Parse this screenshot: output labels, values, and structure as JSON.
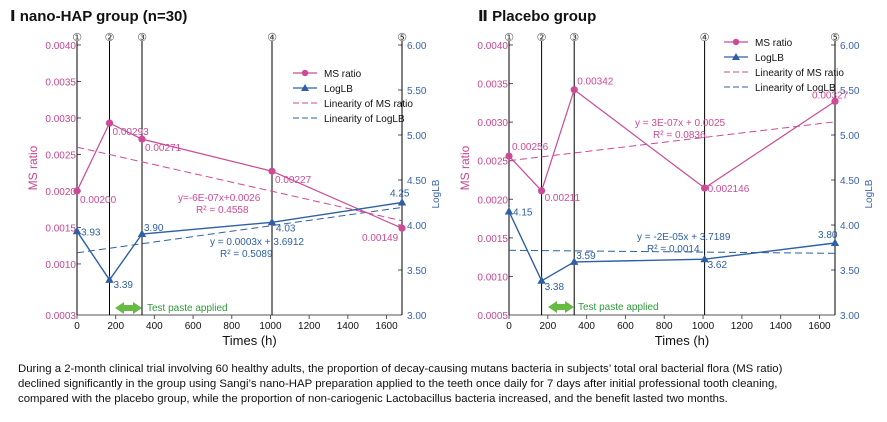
{
  "colors": {
    "ms": "#cc4a96",
    "lb": "#2f5fa4",
    "axis_left": "#c8468f",
    "axis_right": "#3a63ad",
    "arrow": "#66bb44",
    "arrow_text": "#2e9a3a",
    "text": "#111111"
  },
  "chart_data": [
    {
      "type": "line",
      "title_numeral": "Ⅰ",
      "title": "nano-HAP group (n=30)",
      "xlabel": "Times (h)",
      "ylabel": "MS ratio",
      "y2label": "LogLB",
      "xlim": [
        0,
        1680
      ],
      "ylim": [
        0.0003,
        0.004
      ],
      "y2lim": [
        3.0,
        6.0
      ],
      "x_ticks": [
        "0",
        "200",
        "400",
        "600",
        "800",
        "1000",
        "1200",
        "1400",
        "1600"
      ],
      "x_tick_values": [
        0,
        200,
        400,
        600,
        800,
        1000,
        1200,
        1400,
        1600
      ],
      "y_ticks": [
        "0.0003",
        "0.0010",
        "0.0015",
        "0.0020",
        "0.0025",
        "0.0030",
        "0.0035",
        "0.0040"
      ],
      "y_tick_values": [
        0.0003,
        0.001,
        0.0015,
        0.002,
        0.0025,
        0.003,
        0.0035,
        0.004
      ],
      "y2_ticks": [
        "3.00",
        "3.50",
        "4.00",
        "4.50",
        "5.00",
        "5.50",
        "6.00"
      ],
      "y2_tick_values": [
        3.0,
        3.5,
        4.0,
        4.5,
        5.0,
        5.5,
        6.0
      ],
      "markers": [
        {
          "label": "①",
          "x": 0
        },
        {
          "label": "②",
          "x": 168
        },
        {
          "label": "③",
          "x": 336
        },
        {
          "label": "④",
          "x": 1008
        },
        {
          "label": "⑤",
          "x": 1680
        }
      ],
      "series": [
        {
          "name": "MS ratio",
          "axis": "left",
          "x": [
            0,
            168,
            336,
            1008,
            1680
          ],
          "values": [
            0.002,
            0.00293,
            0.00271,
            0.00227,
            0.00149
          ],
          "labels": [
            "0.00200",
            "0.00293",
            "0.00271",
            "0.00227",
            "0.00149"
          ]
        },
        {
          "name": "LogLB",
          "axis": "right",
          "x": [
            0,
            168,
            336,
            1008,
            1680
          ],
          "values": [
            3.93,
            3.39,
            3.9,
            4.03,
            4.25
          ],
          "labels": [
            "3.93",
            "3.39",
            "3.90",
            "4.03",
            "4.25"
          ]
        }
      ],
      "trendlines": [
        {
          "name": "Linearity of MS ratio",
          "axis": "left",
          "slope": -6e-07,
          "intercept": 0.0026,
          "equation": "y=-6E-07x+0.0026",
          "r2": "R² = 0.4558"
        },
        {
          "name": "Linearity of LogLB",
          "axis": "right",
          "slope": 0.0003,
          "intercept": 3.6912,
          "equation": "y = 0.0003x + 3.6912",
          "r2": "R² = 0.5089"
        }
      ],
      "legend": [
        "MS ratio",
        "LogLB",
        "Linearity of MS ratio",
        "Linearity of LogLB"
      ],
      "annotation": "Test paste applied"
    },
    {
      "type": "line",
      "title_numeral": "Ⅱ",
      "title": "Placebo group",
      "xlabel": "Times (h)",
      "ylabel": "MS ratio",
      "y2label": "LogLB",
      "xlim": [
        0,
        1680
      ],
      "ylim": [
        0.0005,
        0.004
      ],
      "y2lim": [
        3.0,
        6.0
      ],
      "x_ticks": [
        "0",
        "200",
        "400",
        "600",
        "800",
        "1000",
        "1200",
        "1400",
        "1600"
      ],
      "x_tick_values": [
        0,
        200,
        400,
        600,
        800,
        1000,
        1200,
        1400,
        1600
      ],
      "y_ticks": [
        "0.0005",
        "0.0010",
        "0.0015",
        "0.0020",
        "0.0025",
        "0.0030",
        "0.0035",
        "0.0040"
      ],
      "y_tick_values": [
        0.0005,
        0.001,
        0.0015,
        0.002,
        0.0025,
        0.003,
        0.0035,
        0.004
      ],
      "y2_ticks": [
        "3.00",
        "3.50",
        "4.00",
        "4.50",
        "5.00",
        "5.50",
        "6.00"
      ],
      "y2_tick_values": [
        3.0,
        3.5,
        4.0,
        4.5,
        5.0,
        5.5,
        6.0
      ],
      "markers": [
        {
          "label": "①",
          "x": 0
        },
        {
          "label": "②",
          "x": 168
        },
        {
          "label": "③",
          "x": 336
        },
        {
          "label": "④",
          "x": 1008
        },
        {
          "label": "⑤",
          "x": 1680
        }
      ],
      "series": [
        {
          "name": "MS ratio",
          "axis": "left",
          "x": [
            0,
            168,
            336,
            1008,
            1680
          ],
          "values": [
            0.00256,
            0.00211,
            0.00342,
            0.002146,
            0.00327
          ],
          "labels": [
            "0.00256",
            "0.00211",
            "0.00342",
            "0.002146",
            "0.00327"
          ]
        },
        {
          "name": "LogLB",
          "axis": "right",
          "x": [
            0,
            168,
            336,
            1008,
            1680
          ],
          "values": [
            4.15,
            3.38,
            3.59,
            3.62,
            3.8
          ],
          "labels": [
            "4.15",
            "3.38",
            "3.59",
            "3.62",
            "3.80"
          ]
        }
      ],
      "trendlines": [
        {
          "name": "Linearity of MS ratio",
          "axis": "left",
          "slope": 3e-07,
          "intercept": 0.0025,
          "equation": "y = 3E-07x + 0.0025",
          "r2": "R² = 0.0836"
        },
        {
          "name": "Linearity of LogLB",
          "axis": "right",
          "slope": -2e-05,
          "intercept": 3.7189,
          "equation": "y = -2E-05x + 3.7189",
          "r2": "R² = 0.0014"
        }
      ],
      "legend": [
        "MS ratio",
        "LogLB",
        "Linearity of MS ratio",
        "Linearity of LogLB"
      ],
      "annotation": "Test paste applied"
    }
  ],
  "caption": {
    "line1": "During a 2-month clinical trial involving 60 healthy adults, the proportion of decay-causing mutans bacteria in subjects’ total oral bacterial flora (MS ratio)",
    "line2": "declined significantly in the group using Sangi’s nano-HAP preparation applied to the teeth once daily for 7 days after initial professional tooth cleaning,",
    "line3": "compared with the placebo group, while the proportion of non-cariogenic Lactobacillus bacteria increased, and the benefit lasted two months."
  }
}
